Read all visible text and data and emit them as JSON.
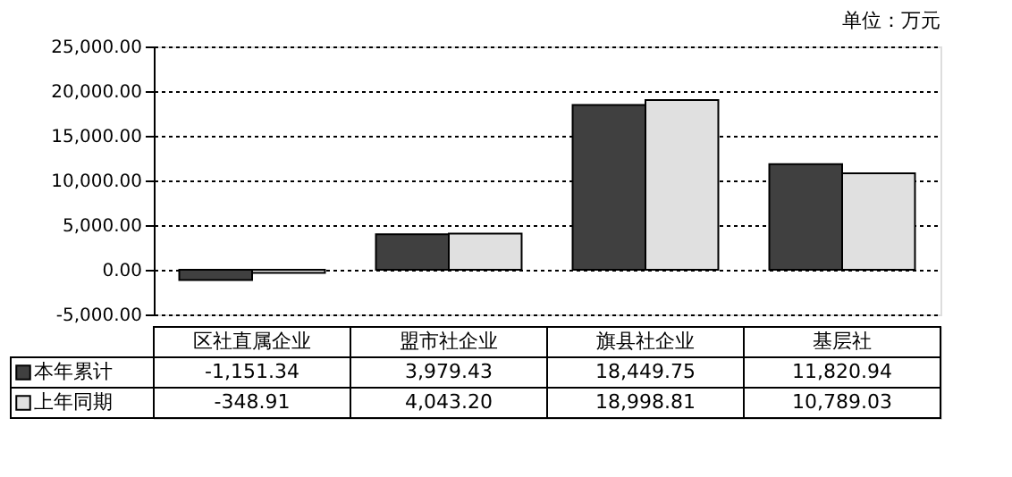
{
  "chart_data": {
    "type": "bar",
    "categories": [
      "区社直属企业",
      "盟市社企业",
      "旗县社企业",
      "基层社"
    ],
    "series": [
      {
        "name": "本年累计",
        "color": "#404040",
        "values": [
          -1151.34,
          3979.43,
          18449.75,
          11820.94
        ],
        "value_labels": [
          "-1,151.34",
          "3,979.43",
          "18,449.75",
          "11,820.94"
        ]
      },
      {
        "name": "上年同期",
        "color": "#e0e0e0",
        "values": [
          -348.91,
          4043.2,
          18998.81,
          10789.03
        ],
        "value_labels": [
          "-348.91",
          "4,043.20",
          "18,998.81",
          "10,789.03"
        ]
      }
    ],
    "ylim": [
      -5000,
      25000
    ],
    "yticks": [
      {
        "value": -5000,
        "label": "-5,000.00"
      },
      {
        "value": 0,
        "label": "0.00"
      },
      {
        "value": 5000,
        "label": "5,000.00"
      },
      {
        "value": 10000,
        "label": "10,000.00"
      },
      {
        "value": 15000,
        "label": "15,000.00"
      },
      {
        "value": 20000,
        "label": "20,000.00"
      },
      {
        "value": 25000,
        "label": "25,000.00"
      }
    ],
    "grid": "y",
    "legend": "bottom",
    "annotations": [
      "单位：万元"
    ]
  }
}
